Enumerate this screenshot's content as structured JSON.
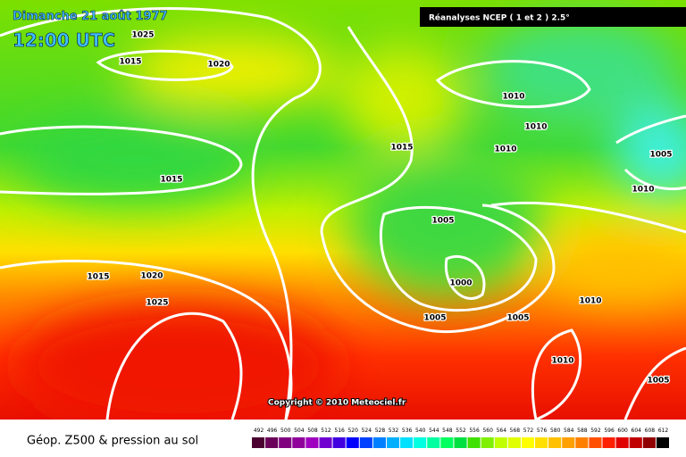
{
  "header": {
    "date": "Dimanche 21 août 1977",
    "time": "12:00 UTC",
    "source": "Réanalyses NCEP ( 1 et 2 ) 2.5°"
  },
  "isobar_labels": [
    "1025",
    "1015",
    "1020",
    "1010",
    "1010",
    "1010",
    "1015",
    "1015",
    "1005",
    "1010",
    "1005",
    "1015",
    "1020",
    "1025",
    "1000",
    "1010",
    "1005",
    "1005",
    "1010",
    "1005"
  ],
  "copyright": "Copyright © 2010 Meteociel.fr",
  "footer": {
    "title": "Géop. Z500 & pression au sol",
    "scale": [
      492,
      496,
      500,
      504,
      508,
      512,
      516,
      520,
      524,
      528,
      532,
      536,
      540,
      544,
      548,
      552,
      556,
      560,
      564,
      568,
      572,
      576,
      580,
      584,
      588,
      592,
      596,
      600,
      604,
      608,
      612
    ]
  }
}
